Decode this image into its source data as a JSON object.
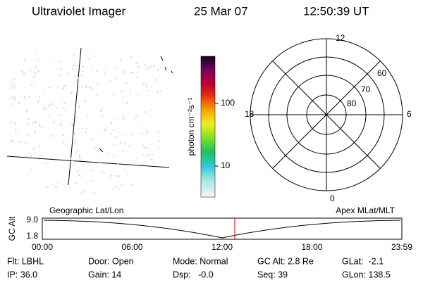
{
  "header": {
    "title": "Ultraviolet Imager",
    "date": "25 Mar 07",
    "time": "12:50:39 UT"
  },
  "colorbar": {
    "label": "photon cm⁻²s⁻¹",
    "ticks": [
      "100",
      "10"
    ]
  },
  "polar": {
    "mlt_labels": [
      "12",
      "18",
      "6",
      "0"
    ],
    "lat_labels": [
      "60",
      "70",
      "80"
    ]
  },
  "timeline": {
    "left_label": "Geographic Lat/Lon",
    "right_label": "Apex MLat/MLT",
    "y_label": "GC Alt",
    "y_ticks": [
      "9.0",
      "1.8"
    ],
    "x_ticks": [
      "00:00",
      "06:00",
      "12:00",
      "18:00",
      "23:59"
    ]
  },
  "info": {
    "rows": [
      [
        "Flt: LBHL",
        "Door: Open",
        "Mode: Normal",
        "GC Alt: 2.8 Re",
        "GLat:  -2.1"
      ],
      [
        "IP: 36.0",
        "Gain: 14",
        "Dsp:   -0.0",
        "Seq: 39",
        "GLon: 138.5"
      ]
    ]
  }
}
